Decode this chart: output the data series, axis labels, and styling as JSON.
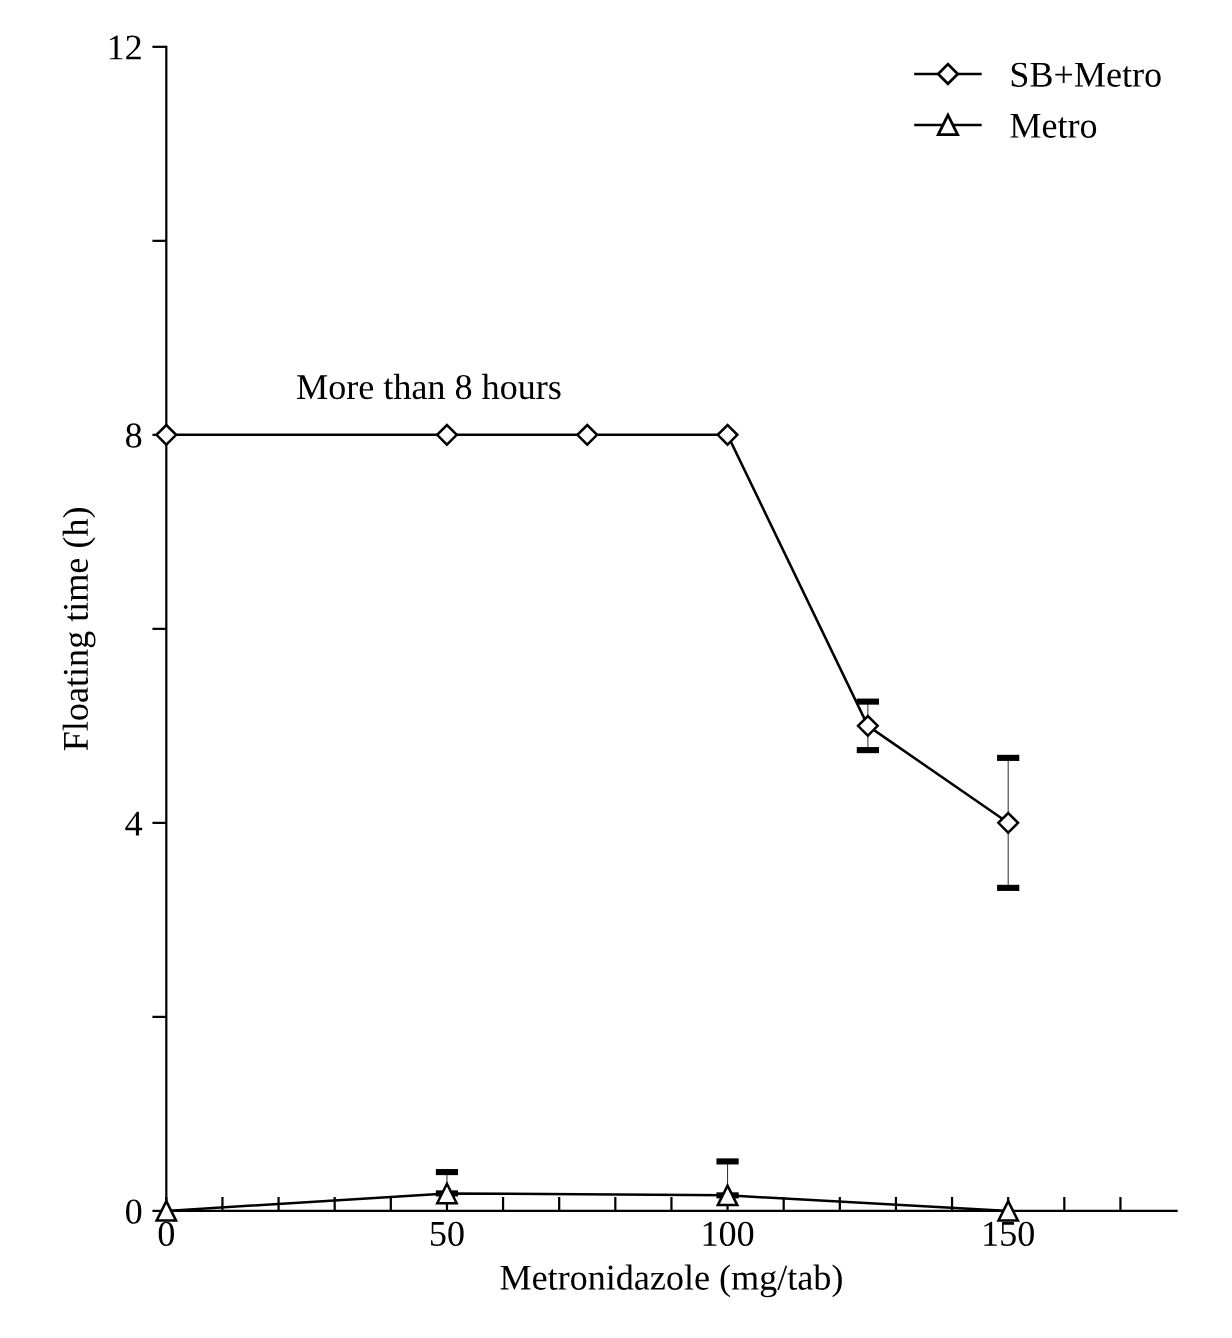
{
  "chart_data": {
    "type": "line",
    "xlabel": "Metronidazole (mg/tab)",
    "ylabel": "Floating time (h)",
    "xlim": [
      0,
      180
    ],
    "ylim": [
      0,
      12
    ],
    "xticks": [
      0,
      {
        "value": 10,
        "label": null
      },
      {
        "value": 20,
        "label": null
      },
      {
        "value": 30,
        "label": null
      },
      {
        "value": 40,
        "label": null
      },
      50,
      {
        "value": 60,
        "label": null
      },
      {
        "value": 70,
        "label": null
      },
      {
        "value": 80,
        "label": null
      },
      {
        "value": 90,
        "label": null
      },
      100,
      {
        "value": 110,
        "label": null
      },
      {
        "value": 120,
        "label": null
      },
      {
        "value": 130,
        "label": null
      },
      {
        "value": 140,
        "label": null
      },
      150,
      {
        "value": 160,
        "label": null
      },
      {
        "value": 170,
        "label": null
      }
    ],
    "yticks": [
      0,
      {
        "value": 2,
        "label": null
      },
      4,
      {
        "value": 6,
        "label": null
      },
      8,
      {
        "value": 10,
        "label": null
      },
      12
    ],
    "grid": false,
    "legend": "top right",
    "line_style": "solid",
    "annotations": [
      "More than 8 hours"
    ],
    "series": [
      {
        "name": "SB+Metro",
        "color": "#000000",
        "marker": "diamond",
        "x": [
          0,
          50,
          75,
          100,
          125,
          150
        ],
        "values": [
          8,
          8,
          8,
          8,
          5.0,
          4.0
        ],
        "errors": [
          null,
          null,
          null,
          null,
          [
            4.75,
            5.25
          ],
          [
            3.33,
            4.67
          ]
        ]
      },
      {
        "name": "Metro",
        "color": "#000000",
        "marker": "triangle",
        "x": [
          0,
          50,
          100,
          150
        ],
        "values": [
          0,
          0.18,
          0.16,
          0
        ],
        "errors": [
          null,
          [
            0.18,
            0.4
          ],
          [
            0.16,
            0.51
          ],
          null
        ]
      }
    ]
  }
}
